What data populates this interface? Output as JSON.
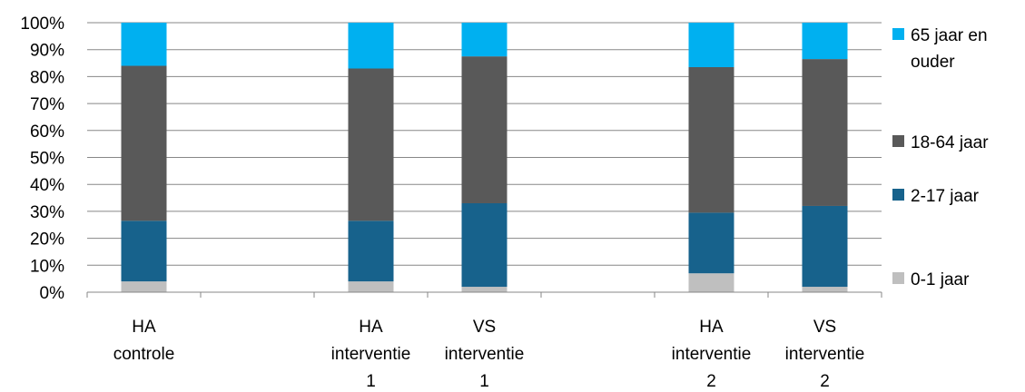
{
  "chart_data": {
    "type": "bar",
    "stacked": true,
    "percent": true,
    "categories": [
      [
        "HA",
        "controle"
      ],
      [],
      [
        "HA",
        "interventie",
        "1"
      ],
      [
        "VS",
        "interventie",
        "1"
      ],
      [],
      [
        "HA",
        "interventie",
        "2"
      ],
      [
        "VS",
        "interventie",
        "2"
      ]
    ],
    "series": [
      {
        "name": "0-1 jaar",
        "color": "#bfbfbf",
        "values": [
          4,
          null,
          4,
          2,
          null,
          7,
          2
        ]
      },
      {
        "name": "2-17 jaar",
        "color": "#17628c",
        "values": [
          22.5,
          null,
          22.5,
          31,
          null,
          22.5,
          30
        ]
      },
      {
        "name": "18-64 jaar",
        "color": "#595959",
        "values": [
          57.5,
          null,
          56.5,
          54.5,
          null,
          54,
          54.5
        ]
      },
      {
        "name": "65 jaar en ouder",
        "color": "#00b0f0",
        "values": [
          16,
          null,
          17,
          12.5,
          null,
          16.5,
          13.5
        ]
      }
    ],
    "legend_order": [
      "65 jaar en ouder",
      "18-64 jaar",
      "2-17 jaar",
      "0-1 jaar"
    ],
    "legend_lines": {
      "65 jaar en ouder": [
        "65 jaar en",
        "ouder"
      ],
      "18-64 jaar": [
        "18-64 jaar"
      ],
      "2-17 jaar": [
        "2-17 jaar"
      ],
      "0-1 jaar": [
        "0-1 jaar"
      ]
    },
    "yticks": [
      "0%",
      "10%",
      "20%",
      "30%",
      "40%",
      "50%",
      "60%",
      "70%",
      "80%",
      "90%",
      "100%"
    ],
    "ylim": [
      0,
      100
    ],
    "grid": true,
    "legend_position": "right",
    "title": "",
    "xlabel": "",
    "ylabel": ""
  }
}
